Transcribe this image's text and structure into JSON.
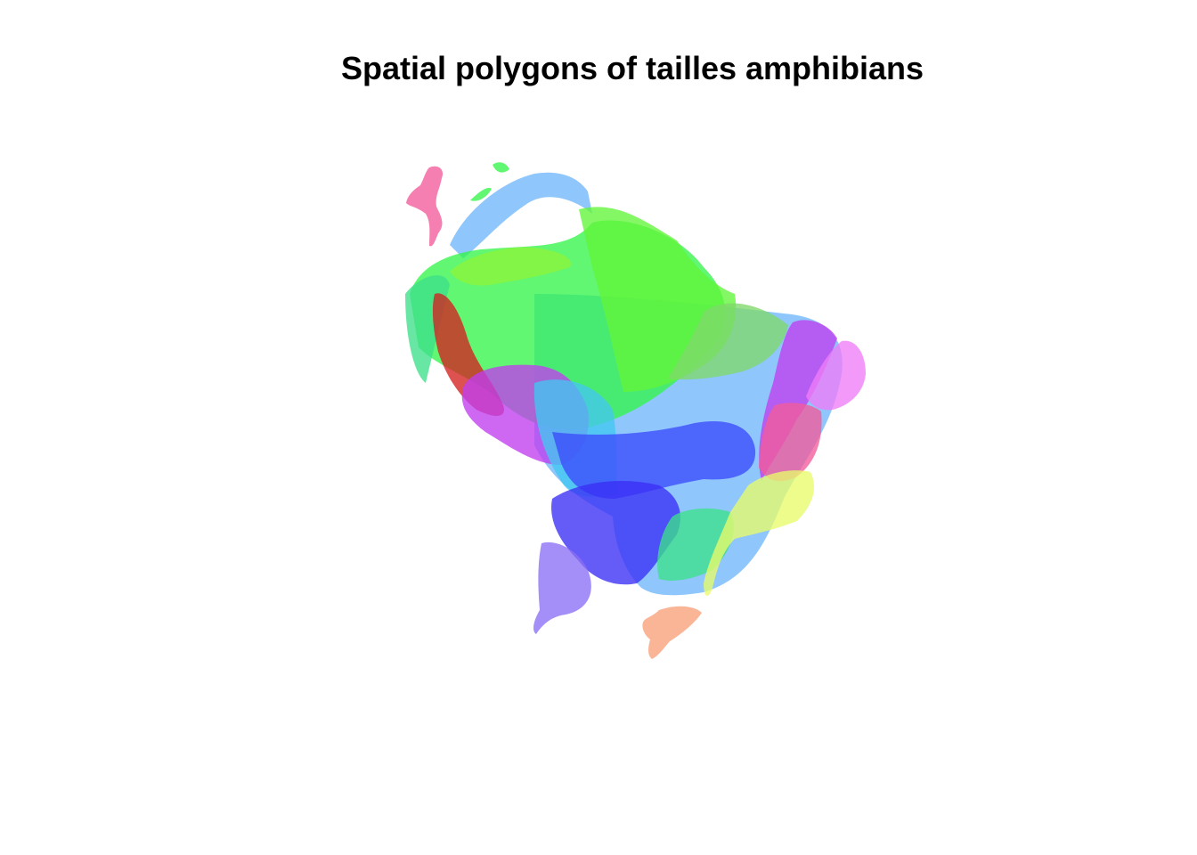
{
  "title": "Spatial polygons of tailles amphibians",
  "colors": {
    "blue_light": "#6fb6fb",
    "green": "#35f54a",
    "green_yellow": "#62f53a",
    "lime": "#8cf53a",
    "olive_green": "#7fd86a",
    "red": "#d42020",
    "magenta": "#c03df0",
    "pink": "#f07cf7",
    "hot_pink": "#f25b9a",
    "yellow": "#e8fb6a",
    "blue": "#3b4cfb",
    "deep_blue": "#3a2ef5",
    "violet": "#8b6ef5",
    "cyan": "#43c6ef",
    "sea_green": "#3ee08a",
    "salmon": "#f8a07a"
  }
}
